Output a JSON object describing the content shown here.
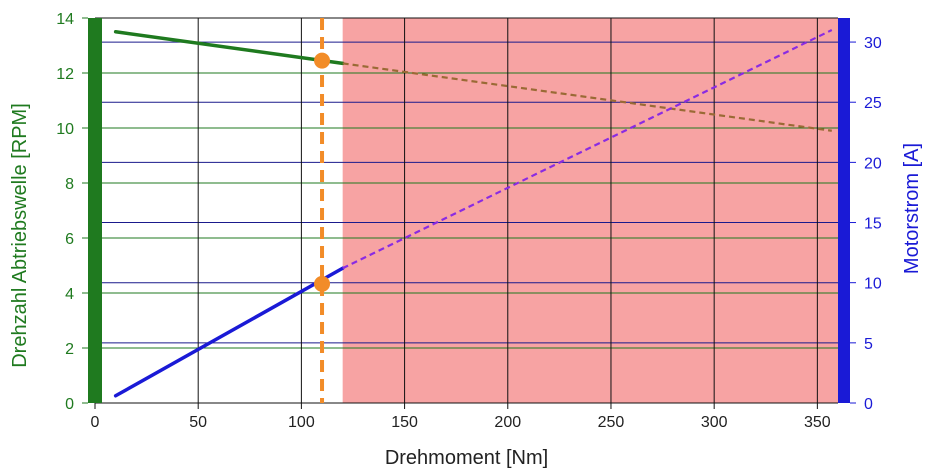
{
  "chart_data": {
    "type": "line",
    "xlabel": "Drehmoment [Nm]",
    "ylabel_left": "Drehzahl Abtriebswelle [RPM]",
    "ylabel_right": "Motorstrom [A]",
    "xlim": [
      0,
      360
    ],
    "ylim_left": [
      0,
      14
    ],
    "ylim_right": [
      0,
      32
    ],
    "x_ticks": [
      "0",
      "50",
      "100",
      "150",
      "200",
      "250",
      "300",
      "350"
    ],
    "y_left_ticks": [
      "0",
      "2",
      "4",
      "6",
      "8",
      "10",
      "12",
      "14"
    ],
    "y_right_ticks": [
      "0",
      "5",
      "10",
      "15",
      "20",
      "25",
      "30"
    ],
    "grid": true,
    "overload_region": {
      "x_start": 120,
      "x_end": 360,
      "color": "#f7a3a3"
    },
    "operating_point_x": 110,
    "series": [
      {
        "axis": "left",
        "color": "#1f7a1f",
        "solid": {
          "x": [
            10,
            120
          ],
          "y": [
            13.5,
            12.35
          ]
        },
        "dashed": {
          "x": [
            120,
            357
          ],
          "y": [
            12.35,
            9.9
          ]
        },
        "dashed_color": "#9a6a35"
      },
      {
        "axis": "right",
        "color": "#1a1ad6",
        "solid": {
          "x": [
            10,
            120
          ],
          "y": [
            0.6,
            11.2
          ]
        },
        "dashed": {
          "x": [
            120,
            357
          ],
          "y": [
            11.2,
            31.0
          ]
        },
        "dashed_color": "#8a2be2"
      }
    ],
    "markers": [
      {
        "axis": "left",
        "x": 110,
        "y": 12.45,
        "color": "#f28c28"
      },
      {
        "axis": "right",
        "x": 110,
        "y": 9.9,
        "color": "#f28c28"
      }
    ],
    "colors": {
      "left_axis": "#1f7a1f",
      "right_axis": "#1a1ad6",
      "marker": "#f28c28",
      "overload": "#f7a3a3"
    }
  }
}
